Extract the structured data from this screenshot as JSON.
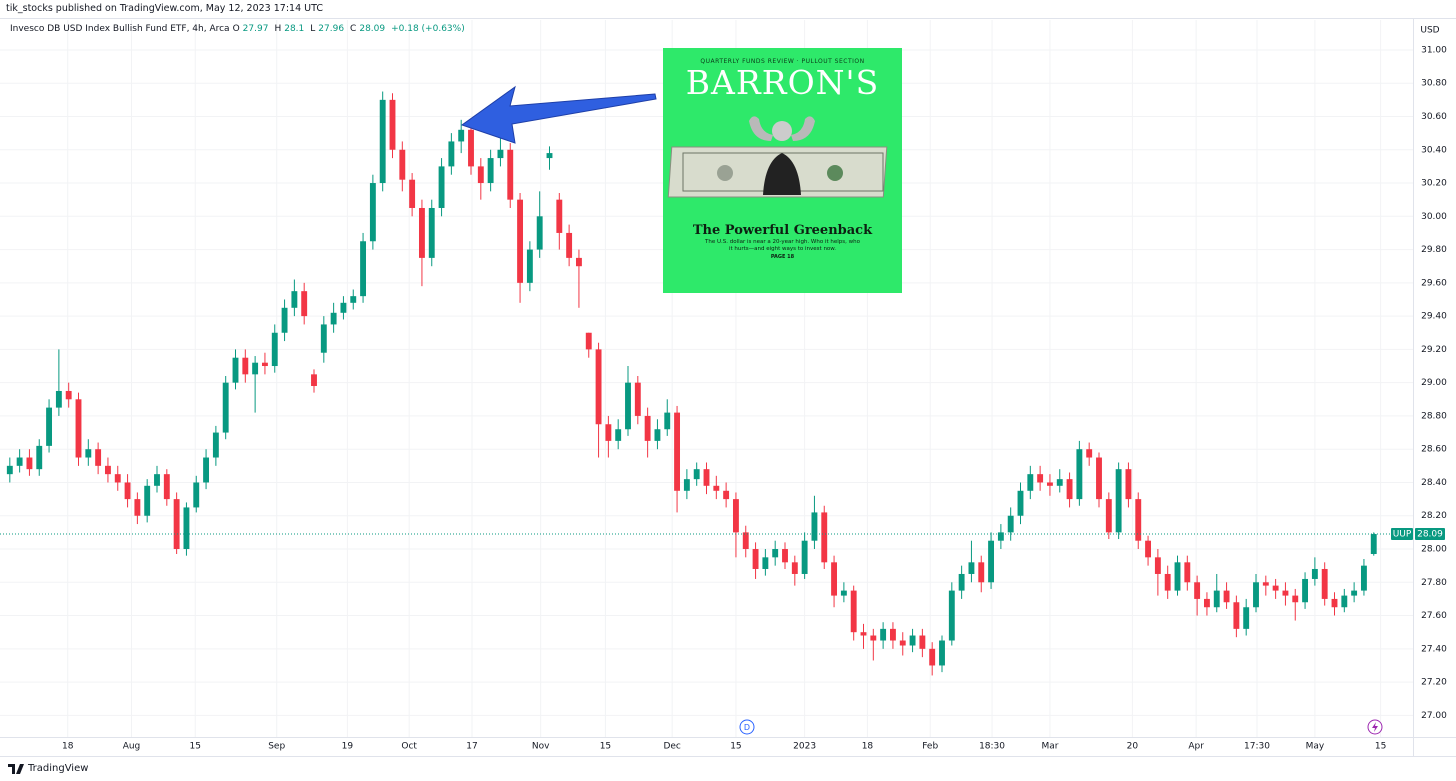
{
  "header": {
    "attribution": "tik_stocks published on TradingView.com, May 12, 2023 17:14 UTC"
  },
  "chart_data": {
    "type": "candlestick",
    "title": "Invesco DB USD Index Bullish Fund ETF, 4h, Arca",
    "symbol": "UUP",
    "currency": "USD",
    "legend": {
      "o_label": "O",
      "h_label": "H",
      "l_label": "L",
      "c_label": "C",
      "change": "+0.18 (+0.63%)"
    },
    "up_color": "#089981",
    "down_color": "#f23645",
    "grid": true,
    "ylim": [
      26.87,
      31.18
    ],
    "yticks": [
      {
        "value": 27,
        "label": "27.00"
      },
      {
        "value": 27.2,
        "label": "27.20"
      },
      {
        "value": 27.4,
        "label": "27.40"
      },
      {
        "value": 27.6,
        "label": "27.60"
      },
      {
        "value": 27.8,
        "label": "27.80"
      },
      {
        "value": 28,
        "label": "28.00"
      },
      {
        "value": 28.2,
        "label": "28.20"
      },
      {
        "value": 28.4,
        "label": "28.40"
      },
      {
        "value": 28.6,
        "label": "28.60"
      },
      {
        "value": 28.8,
        "label": "28.80"
      },
      {
        "value": 29,
        "label": "29.00"
      },
      {
        "value": 29.2,
        "label": "29.20"
      },
      {
        "value": 29.4,
        "label": "29.40"
      },
      {
        "value": 29.6,
        "label": "29.60"
      },
      {
        "value": 29.8,
        "label": "29.80"
      },
      {
        "value": 30,
        "label": "30.00"
      },
      {
        "value": 30.2,
        "label": "30.20"
      },
      {
        "value": 30.4,
        "label": "30.40"
      },
      {
        "value": 30.6,
        "label": "30.60"
      },
      {
        "value": 30.8,
        "label": "30.80"
      },
      {
        "value": 31,
        "label": "31.00"
      }
    ],
    "xlim": [
      -1,
      143
    ],
    "xticks": [
      {
        "value": 5.9,
        "label": "18"
      },
      {
        "value": 12.4,
        "label": "Aug"
      },
      {
        "value": 18.9,
        "label": "15"
      },
      {
        "value": 27.2,
        "label": "Sep"
      },
      {
        "value": 34.4,
        "label": "19"
      },
      {
        "value": 40.7,
        "label": "Oct"
      },
      {
        "value": 47.1,
        "label": "17"
      },
      {
        "value": 54.1,
        "label": "Nov"
      },
      {
        "value": 60.7,
        "label": "15"
      },
      {
        "value": 67.5,
        "label": "Dec"
      },
      {
        "value": 74,
        "label": "15"
      },
      {
        "value": 81,
        "label": "2023"
      },
      {
        "value": 87.4,
        "label": "18"
      },
      {
        "value": 93.8,
        "label": "Feb"
      },
      {
        "value": 100.1,
        "label": "18:30"
      },
      {
        "value": 106,
        "label": "Mar"
      },
      {
        "value": 114.4,
        "label": "20"
      },
      {
        "value": 120.9,
        "label": "Apr"
      },
      {
        "value": 127.1,
        "label": "17:30"
      },
      {
        "value": 133,
        "label": "May"
      },
      {
        "value": 139.7,
        "label": "15"
      }
    ],
    "open": [
      28.45,
      28.5,
      28.55,
      28.48,
      28.62,
      28.85,
      28.95,
      28.9,
      28.55,
      28.6,
      28.5,
      28.45,
      28.4,
      28.3,
      28.2,
      28.38,
      28.45,
      28.3,
      28.0,
      28.25,
      28.4,
      28.55,
      28.7,
      29.0,
      29.15,
      29.05,
      29.12,
      29.1,
      29.3,
      29.45,
      29.55,
      29.05,
      29.18,
      29.35,
      29.42,
      29.48,
      29.52,
      29.85,
      30.2,
      30.7,
      30.4,
      30.22,
      30.05,
      29.75,
      30.05,
      30.3,
      30.45,
      30.52,
      30.3,
      30.2,
      30.35,
      30.4,
      30.1,
      29.6,
      29.8,
      30.35,
      30.1,
      29.9,
      29.75,
      29.3,
      29.2,
      28.75,
      28.65,
      28.72,
      29.0,
      28.8,
      28.65,
      28.72,
      28.82,
      28.35,
      28.42,
      28.48,
      28.38,
      28.35,
      28.3,
      28.1,
      28.0,
      27.88,
      27.95,
      28.0,
      27.92,
      27.85,
      28.05,
      28.22,
      27.92,
      27.72,
      27.75,
      27.5,
      27.48,
      27.45,
      27.52,
      27.45,
      27.42,
      27.48,
      27.4,
      27.3,
      27.45,
      27.75,
      27.85,
      27.92,
      27.8,
      28.05,
      28.1,
      28.2,
      28.35,
      28.45,
      28.4,
      28.38,
      28.42,
      28.3,
      28.6,
      28.55,
      28.3,
      28.1,
      28.48,
      28.3,
      28.05,
      27.95,
      27.85,
      27.75,
      27.92,
      27.8,
      27.7,
      27.65,
      27.75,
      27.68,
      27.52,
      27.65,
      27.8,
      27.78,
      27.75,
      27.72,
      27.68,
      27.82,
      27.88,
      27.7,
      27.65,
      27.72,
      27.75,
      27.97
    ],
    "high": [
      28.55,
      28.6,
      28.6,
      28.66,
      28.9,
      29.2,
      29.0,
      28.94,
      28.66,
      28.64,
      28.55,
      28.5,
      28.45,
      28.34,
      28.42,
      28.5,
      28.48,
      28.34,
      28.28,
      28.44,
      28.6,
      28.74,
      29.04,
      29.2,
      29.2,
      29.16,
      29.18,
      29.35,
      29.5,
      29.62,
      29.6,
      29.08,
      29.4,
      29.48,
      29.52,
      29.56,
      29.9,
      30.25,
      30.75,
      30.74,
      30.45,
      30.26,
      30.1,
      30.1,
      30.35,
      30.5,
      30.58,
      30.55,
      30.35,
      30.4,
      30.5,
      30.44,
      30.14,
      29.85,
      30.15,
      30.42,
      30.14,
      29.95,
      29.8,
      29.3,
      29.24,
      28.8,
      28.78,
      29.1,
      29.04,
      28.85,
      28.78,
      28.9,
      28.86,
      28.48,
      28.52,
      28.52,
      28.44,
      28.4,
      28.34,
      28.14,
      28.04,
      28.0,
      28.05,
      28.04,
      27.96,
      28.1,
      28.32,
      28.26,
      27.96,
      27.8,
      27.78,
      27.55,
      27.52,
      27.56,
      27.56,
      27.5,
      27.52,
      27.52,
      27.44,
      27.48,
      27.8,
      27.9,
      28.05,
      27.96,
      28.1,
      28.15,
      28.25,
      28.4,
      28.5,
      28.5,
      28.45,
      28.48,
      28.46,
      28.65,
      28.64,
      28.58,
      28.34,
      28.52,
      28.52,
      28.34,
      28.08,
      28.0,
      27.9,
      27.96,
      27.96,
      27.84,
      27.74,
      27.85,
      27.8,
      27.72,
      27.7,
      27.85,
      27.84,
      27.82,
      27.8,
      27.76,
      27.86,
      27.95,
      27.92,
      27.74,
      27.76,
      27.8,
      27.94,
      28.1
    ],
    "low": [
      28.4,
      28.46,
      28.44,
      28.44,
      28.58,
      28.8,
      28.85,
      28.5,
      28.5,
      28.45,
      28.4,
      28.35,
      28.25,
      28.15,
      28.16,
      28.34,
      28.26,
      27.97,
      27.96,
      28.22,
      28.36,
      28.5,
      28.66,
      28.96,
      29.0,
      28.82,
      29.05,
      29.06,
      29.25,
      29.4,
      29.35,
      28.94,
      29.12,
      29.3,
      29.38,
      29.44,
      29.48,
      29.8,
      30.15,
      30.35,
      30.15,
      30.0,
      29.58,
      29.7,
      30.0,
      30.25,
      30.38,
      30.25,
      30.1,
      30.15,
      30.3,
      30.05,
      29.48,
      29.55,
      29.75,
      30.28,
      29.8,
      29.7,
      29.45,
      29.15,
      28.55,
      28.55,
      28.6,
      28.68,
      28.75,
      28.55,
      28.6,
      28.68,
      28.22,
      28.3,
      28.38,
      28.33,
      28.3,
      28.25,
      27.95,
      27.95,
      27.82,
      27.84,
      27.9,
      27.88,
      27.78,
      27.82,
      28.0,
      27.88,
      27.65,
      27.68,
      27.45,
      27.4,
      27.33,
      27.4,
      27.4,
      27.36,
      27.38,
      27.35,
      27.24,
      27.26,
      27.42,
      27.7,
      27.8,
      27.74,
      27.76,
      28.0,
      28.05,
      28.15,
      28.3,
      28.35,
      28.32,
      28.34,
      28.25,
      28.26,
      28.5,
      28.25,
      28.06,
      28.06,
      28.25,
      28.0,
      27.9,
      27.72,
      27.7,
      27.72,
      27.75,
      27.6,
      27.6,
      27.62,
      27.64,
      27.47,
      27.48,
      27.62,
      27.72,
      27.7,
      27.66,
      27.57,
      27.64,
      27.78,
      27.66,
      27.6,
      27.62,
      27.68,
      27.72,
      27.96
    ],
    "close": [
      28.5,
      28.55,
      28.48,
      28.62,
      28.85,
      28.95,
      28.9,
      28.55,
      28.6,
      28.5,
      28.45,
      28.4,
      28.3,
      28.2,
      28.38,
      28.45,
      28.3,
      28.0,
      28.25,
      28.4,
      28.55,
      28.7,
      29.0,
      29.15,
      29.05,
      29.12,
      29.1,
      29.3,
      29.45,
      29.55,
      29.4,
      28.98,
      29.35,
      29.42,
      29.48,
      29.52,
      29.85,
      30.2,
      30.7,
      30.4,
      30.22,
      30.05,
      29.75,
      30.05,
      30.3,
      30.45,
      30.52,
      30.3,
      30.2,
      30.35,
      30.4,
      30.1,
      29.6,
      29.8,
      30.0,
      30.38,
      29.9,
      29.75,
      29.7,
      29.2,
      28.75,
      28.65,
      28.72,
      29.0,
      28.8,
      28.65,
      28.72,
      28.82,
      28.35,
      28.42,
      28.48,
      28.38,
      28.35,
      28.3,
      28.1,
      28.0,
      27.88,
      27.95,
      28.0,
      27.92,
      27.85,
      28.05,
      28.22,
      27.92,
      27.72,
      27.75,
      27.5,
      27.48,
      27.45,
      27.52,
      27.45,
      27.42,
      27.48,
      27.4,
      27.3,
      27.45,
      27.75,
      27.85,
      27.92,
      27.8,
      28.05,
      28.1,
      28.2,
      28.35,
      28.45,
      28.4,
      28.38,
      28.42,
      28.3,
      28.6,
      28.55,
      28.3,
      28.1,
      28.48,
      28.3,
      28.05,
      27.95,
      27.85,
      27.75,
      27.92,
      27.8,
      27.7,
      27.65,
      27.75,
      27.68,
      27.52,
      27.65,
      27.8,
      27.78,
      27.75,
      27.72,
      27.68,
      27.82,
      27.88,
      27.7,
      27.65,
      27.72,
      27.75,
      27.9,
      28.09
    ]
  },
  "inset": {
    "kicker": "QUARTERLY FUNDS REVIEW · PULLOUT SECTION",
    "masthead": "BARRON'S",
    "headline": "The Powerful Greenback",
    "dek": "The U.S. dollar is near a 20-year high. Who it helps, who it hurts—and eight ways to invest now.",
    "page": "PAGE 18"
  },
  "footer": {
    "brand": "TradingView"
  }
}
